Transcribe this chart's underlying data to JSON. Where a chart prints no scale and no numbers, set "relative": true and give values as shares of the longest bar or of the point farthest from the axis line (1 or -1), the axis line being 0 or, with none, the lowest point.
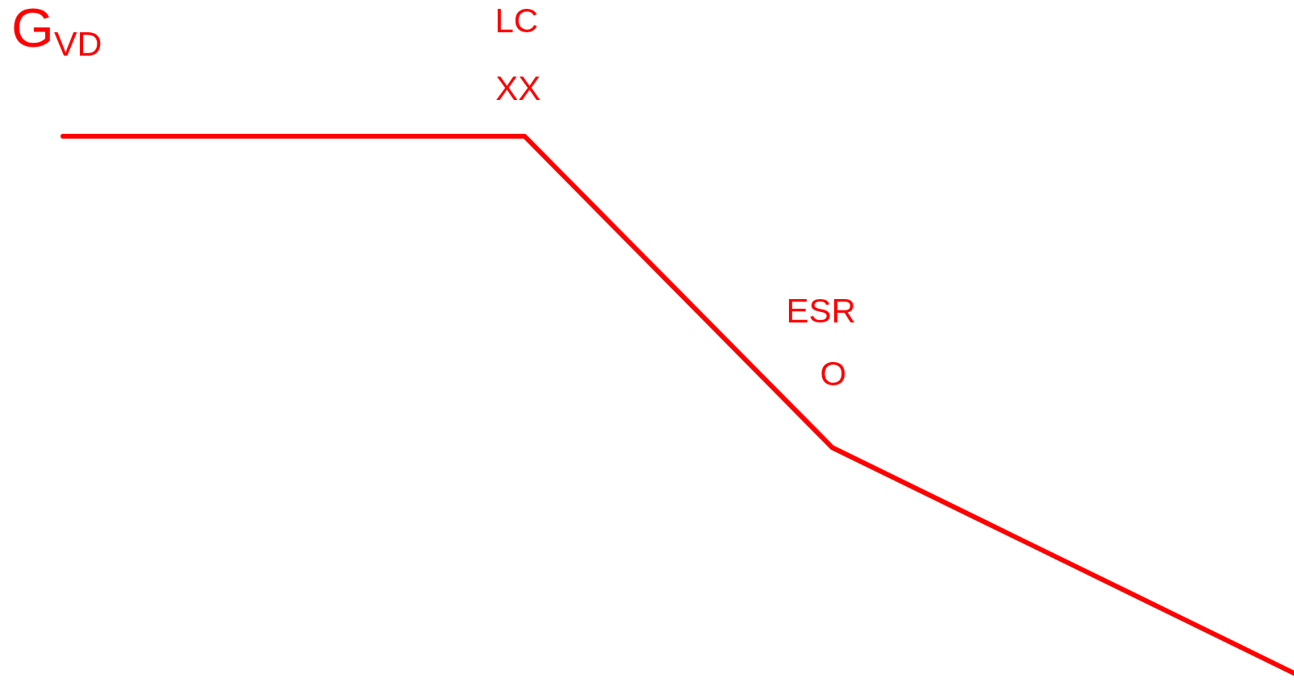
{
  "chart_data": {
    "type": "line",
    "ylabel": "G$_{VD}$",
    "categories": [
      null,
      null,
      null,
      null,
      null,
      null,
      null,
      null,
      null
    ],
    "values": [
      1,
      1,
      1,
      1,
      0.71,
      0.42,
      0.28,
      0.14,
      0
    ],
    "color": "#ff0000",
    "line_style": "solid",
    "relative": true,
    "annotations": [
      "LC",
      "XX",
      "ESR",
      "O"
    ]
  }
}
